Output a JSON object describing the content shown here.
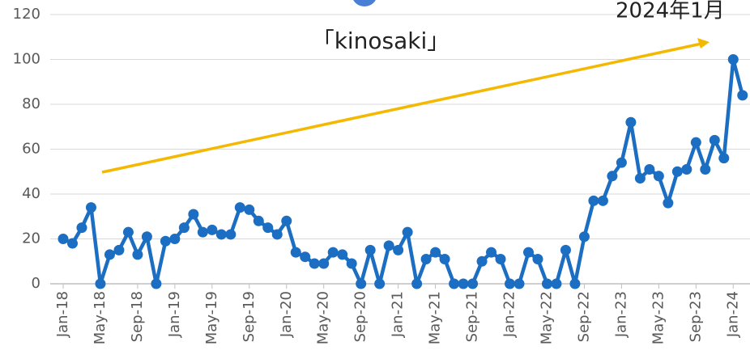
{
  "chart_data": {
    "type": "line",
    "annotations": [
      "「kinosaki」",
      "2024年1月"
    ],
    "categories": [
      "Jan-18",
      null,
      null,
      null,
      "May-18",
      null,
      null,
      null,
      "Sep-18",
      null,
      null,
      null,
      "Jan-19",
      null,
      null,
      null,
      "May-19",
      null,
      null,
      null,
      "Sep-19",
      null,
      null,
      null,
      "Jan-20",
      null,
      null,
      null,
      "May-20",
      null,
      null,
      null,
      "Sep-20",
      null,
      null,
      null,
      "Jan-21",
      null,
      null,
      null,
      "May-21",
      null,
      null,
      null,
      "Sep-21",
      null,
      null,
      null,
      "Jan-22",
      null,
      null,
      null,
      "May-22",
      null,
      null,
      null,
      "Sep-22",
      null,
      null,
      null,
      "Jan-23",
      null,
      null,
      null,
      "May-23",
      null,
      null,
      null,
      "Sep-23",
      null,
      null,
      null,
      "Jan-24",
      null
    ],
    "values": [
      20,
      18,
      25,
      34,
      0,
      13,
      15,
      23,
      13,
      21,
      0,
      19,
      20,
      25,
      31,
      23,
      24,
      22,
      22,
      34,
      33,
      28,
      25,
      22,
      28,
      14,
      12,
      9,
      9,
      14,
      13,
      9,
      0,
      15,
      0,
      17,
      15,
      23,
      0,
      11,
      14,
      11,
      0,
      0,
      0,
      10,
      14,
      11,
      0,
      0,
      14,
      11,
      0,
      0,
      15,
      0,
      21,
      37,
      37,
      48,
      54,
      72,
      47,
      51,
      48,
      36,
      50,
      51,
      63,
      51,
      64,
      56,
      100,
      84
    ],
    "color": "#1b6ec2",
    "ylim": [
      0,
      120
    ],
    "yticks": [
      0,
      20,
      40,
      60,
      80,
      100,
      120
    ],
    "grid": true
  }
}
